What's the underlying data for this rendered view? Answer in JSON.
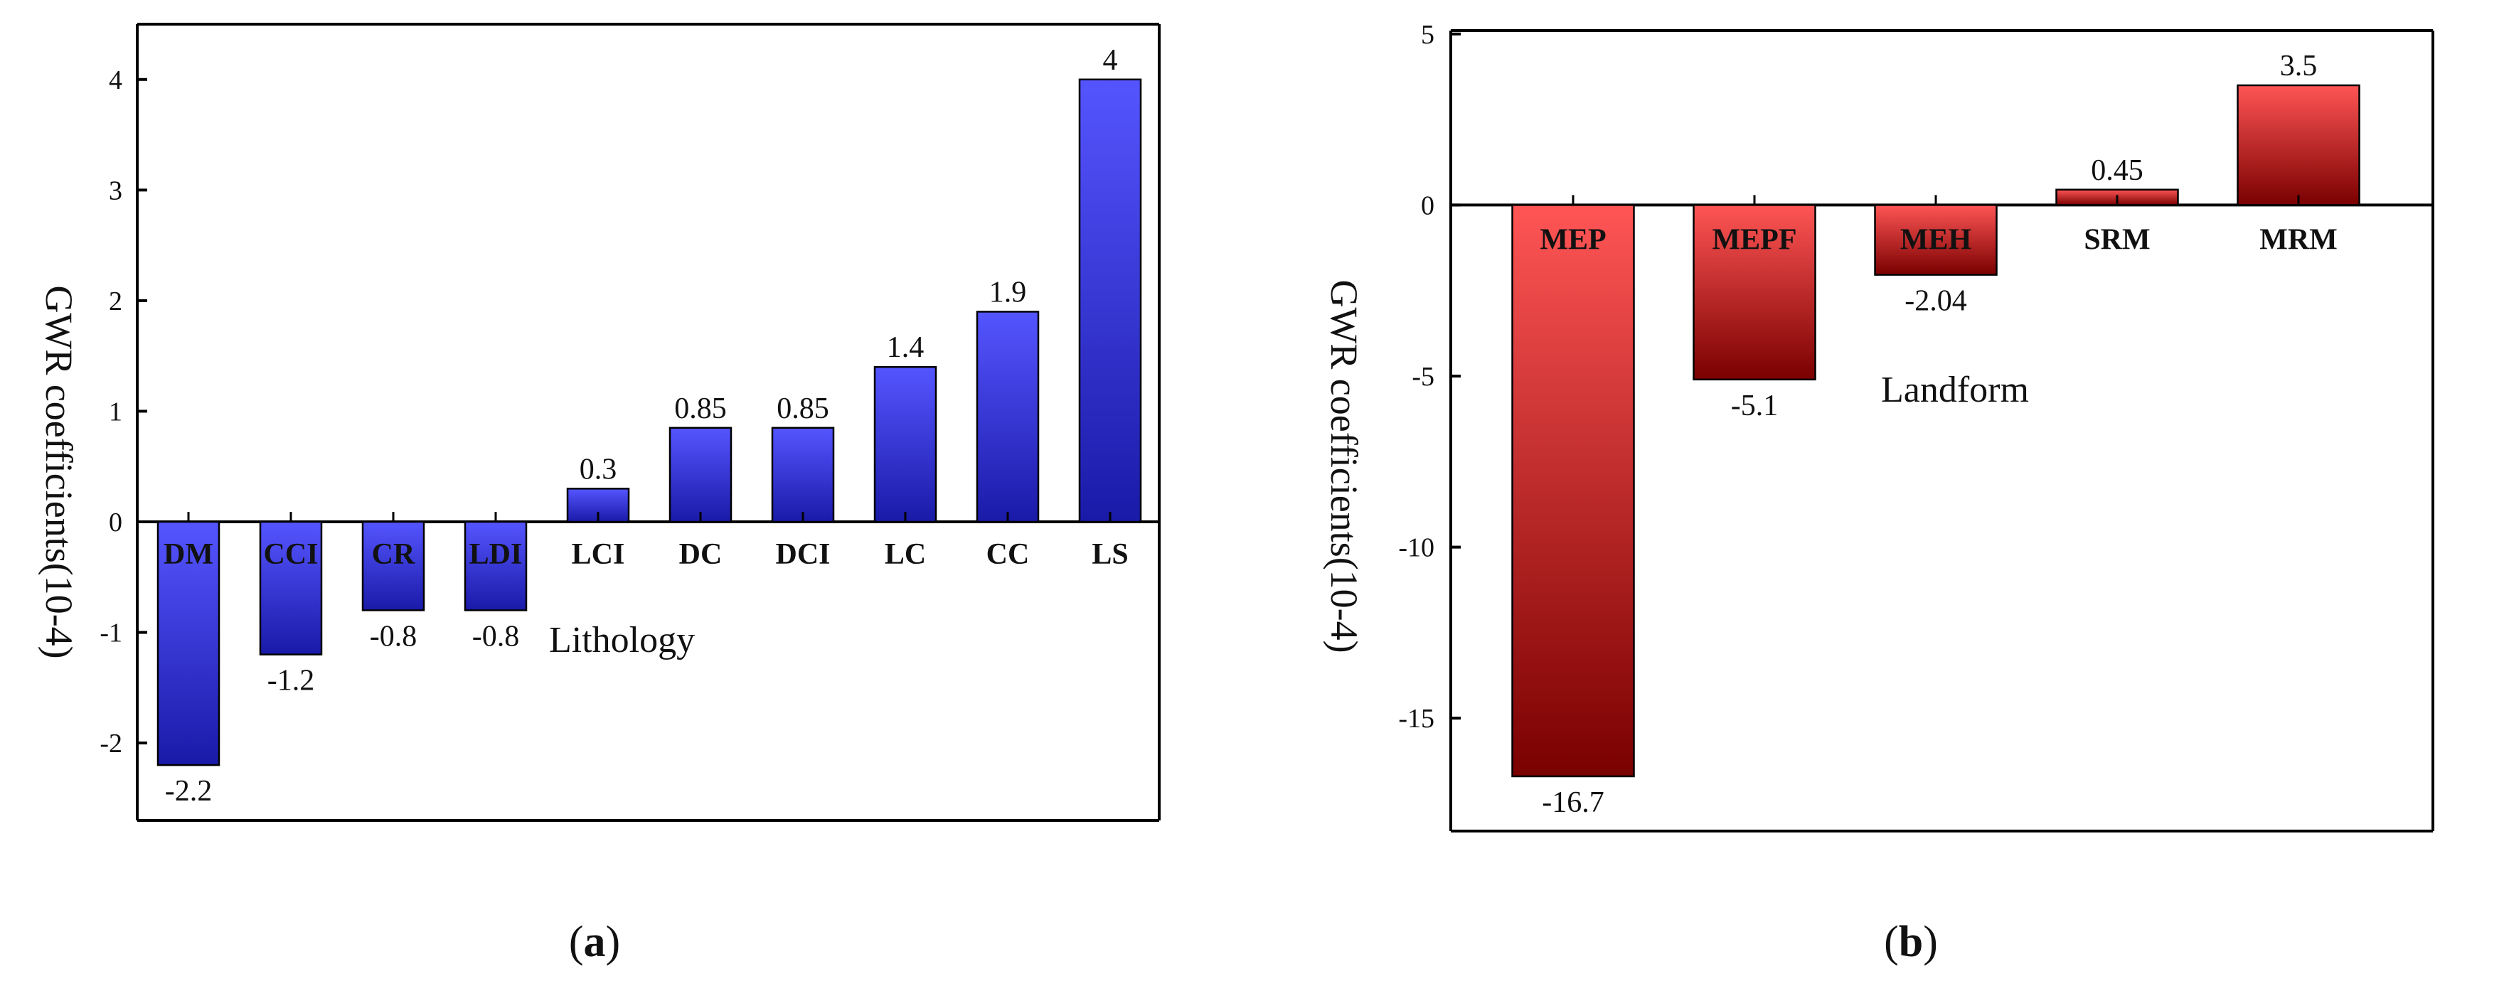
{
  "figure": {
    "panel_a_label": "a",
    "panel_b_label": "b"
  },
  "colors": {
    "panel_a_bar_top": "#5555ff",
    "panel_a_bar_bottom": "#1a1aa8",
    "panel_b_bar_top": "#ff5555",
    "panel_b_bar_bottom": "#7a0000",
    "axis": "#000000"
  },
  "chart_data": [
    {
      "type": "bar",
      "panel": "a",
      "ylabel": "GWR coefficients(10-4)",
      "annotation": "Lithology",
      "categories": [
        "DM",
        "CCI",
        "CR",
        "LDI",
        "LCI",
        "DC",
        "DCI",
        "LC",
        "CC",
        "LS"
      ],
      "values": [
        -2.2,
        -1.2,
        -0.8,
        -0.8,
        0.3,
        0.85,
        0.85,
        1.4,
        1.9,
        4
      ],
      "value_labels": [
        "-2.2",
        "-1.2",
        "-0.8",
        "-0.8",
        "0.3",
        "0.85",
        "0.85",
        "1.4",
        "1.9",
        "4"
      ],
      "yticks": [
        -2,
        -1,
        0,
        1,
        2,
        3,
        4
      ],
      "ylim": [
        -2.7,
        4.5
      ],
      "grid": false
    },
    {
      "type": "bar",
      "panel": "b",
      "ylabel": "GWR coefficients(10-4)",
      "annotation": "Landform",
      "categories": [
        "MEP",
        "MEPF",
        "MEH",
        "SRM",
        "MRM"
      ],
      "values": [
        -16.7,
        -5.1,
        -2.04,
        0.45,
        3.5
      ],
      "value_labels": [
        "-16.7",
        "-5.1",
        "-2.04",
        "0.45",
        "3.5"
      ],
      "yticks": [
        -15,
        -10,
        -5,
        0,
        5
      ],
      "ylim": [
        -18.3,
        5.1
      ],
      "grid": false
    }
  ]
}
